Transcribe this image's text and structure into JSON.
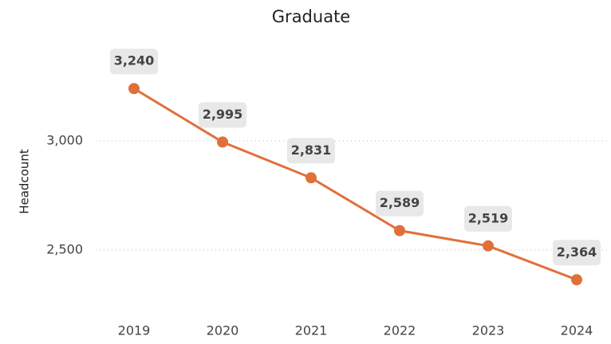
{
  "chart_data": {
    "type": "line",
    "title": "Graduate",
    "ylabel": "Headcount",
    "categories": [
      "2019",
      "2020",
      "2021",
      "2022",
      "2023",
      "2024"
    ],
    "series": [
      {
        "name": "Headcount",
        "color": "#e0703a",
        "values": [
          3240,
          2995,
          2831,
          2589,
          2519,
          2364
        ],
        "value_labels": [
          "3,240",
          "2,995",
          "2,831",
          "2,589",
          "2,519",
          "2,364"
        ]
      }
    ],
    "ylim": [
      2300,
      3400
    ],
    "yticks": [
      {
        "value": 2500,
        "label": "2,500"
      },
      {
        "value": 3000,
        "label": "3,000"
      }
    ],
    "grid": true
  }
}
